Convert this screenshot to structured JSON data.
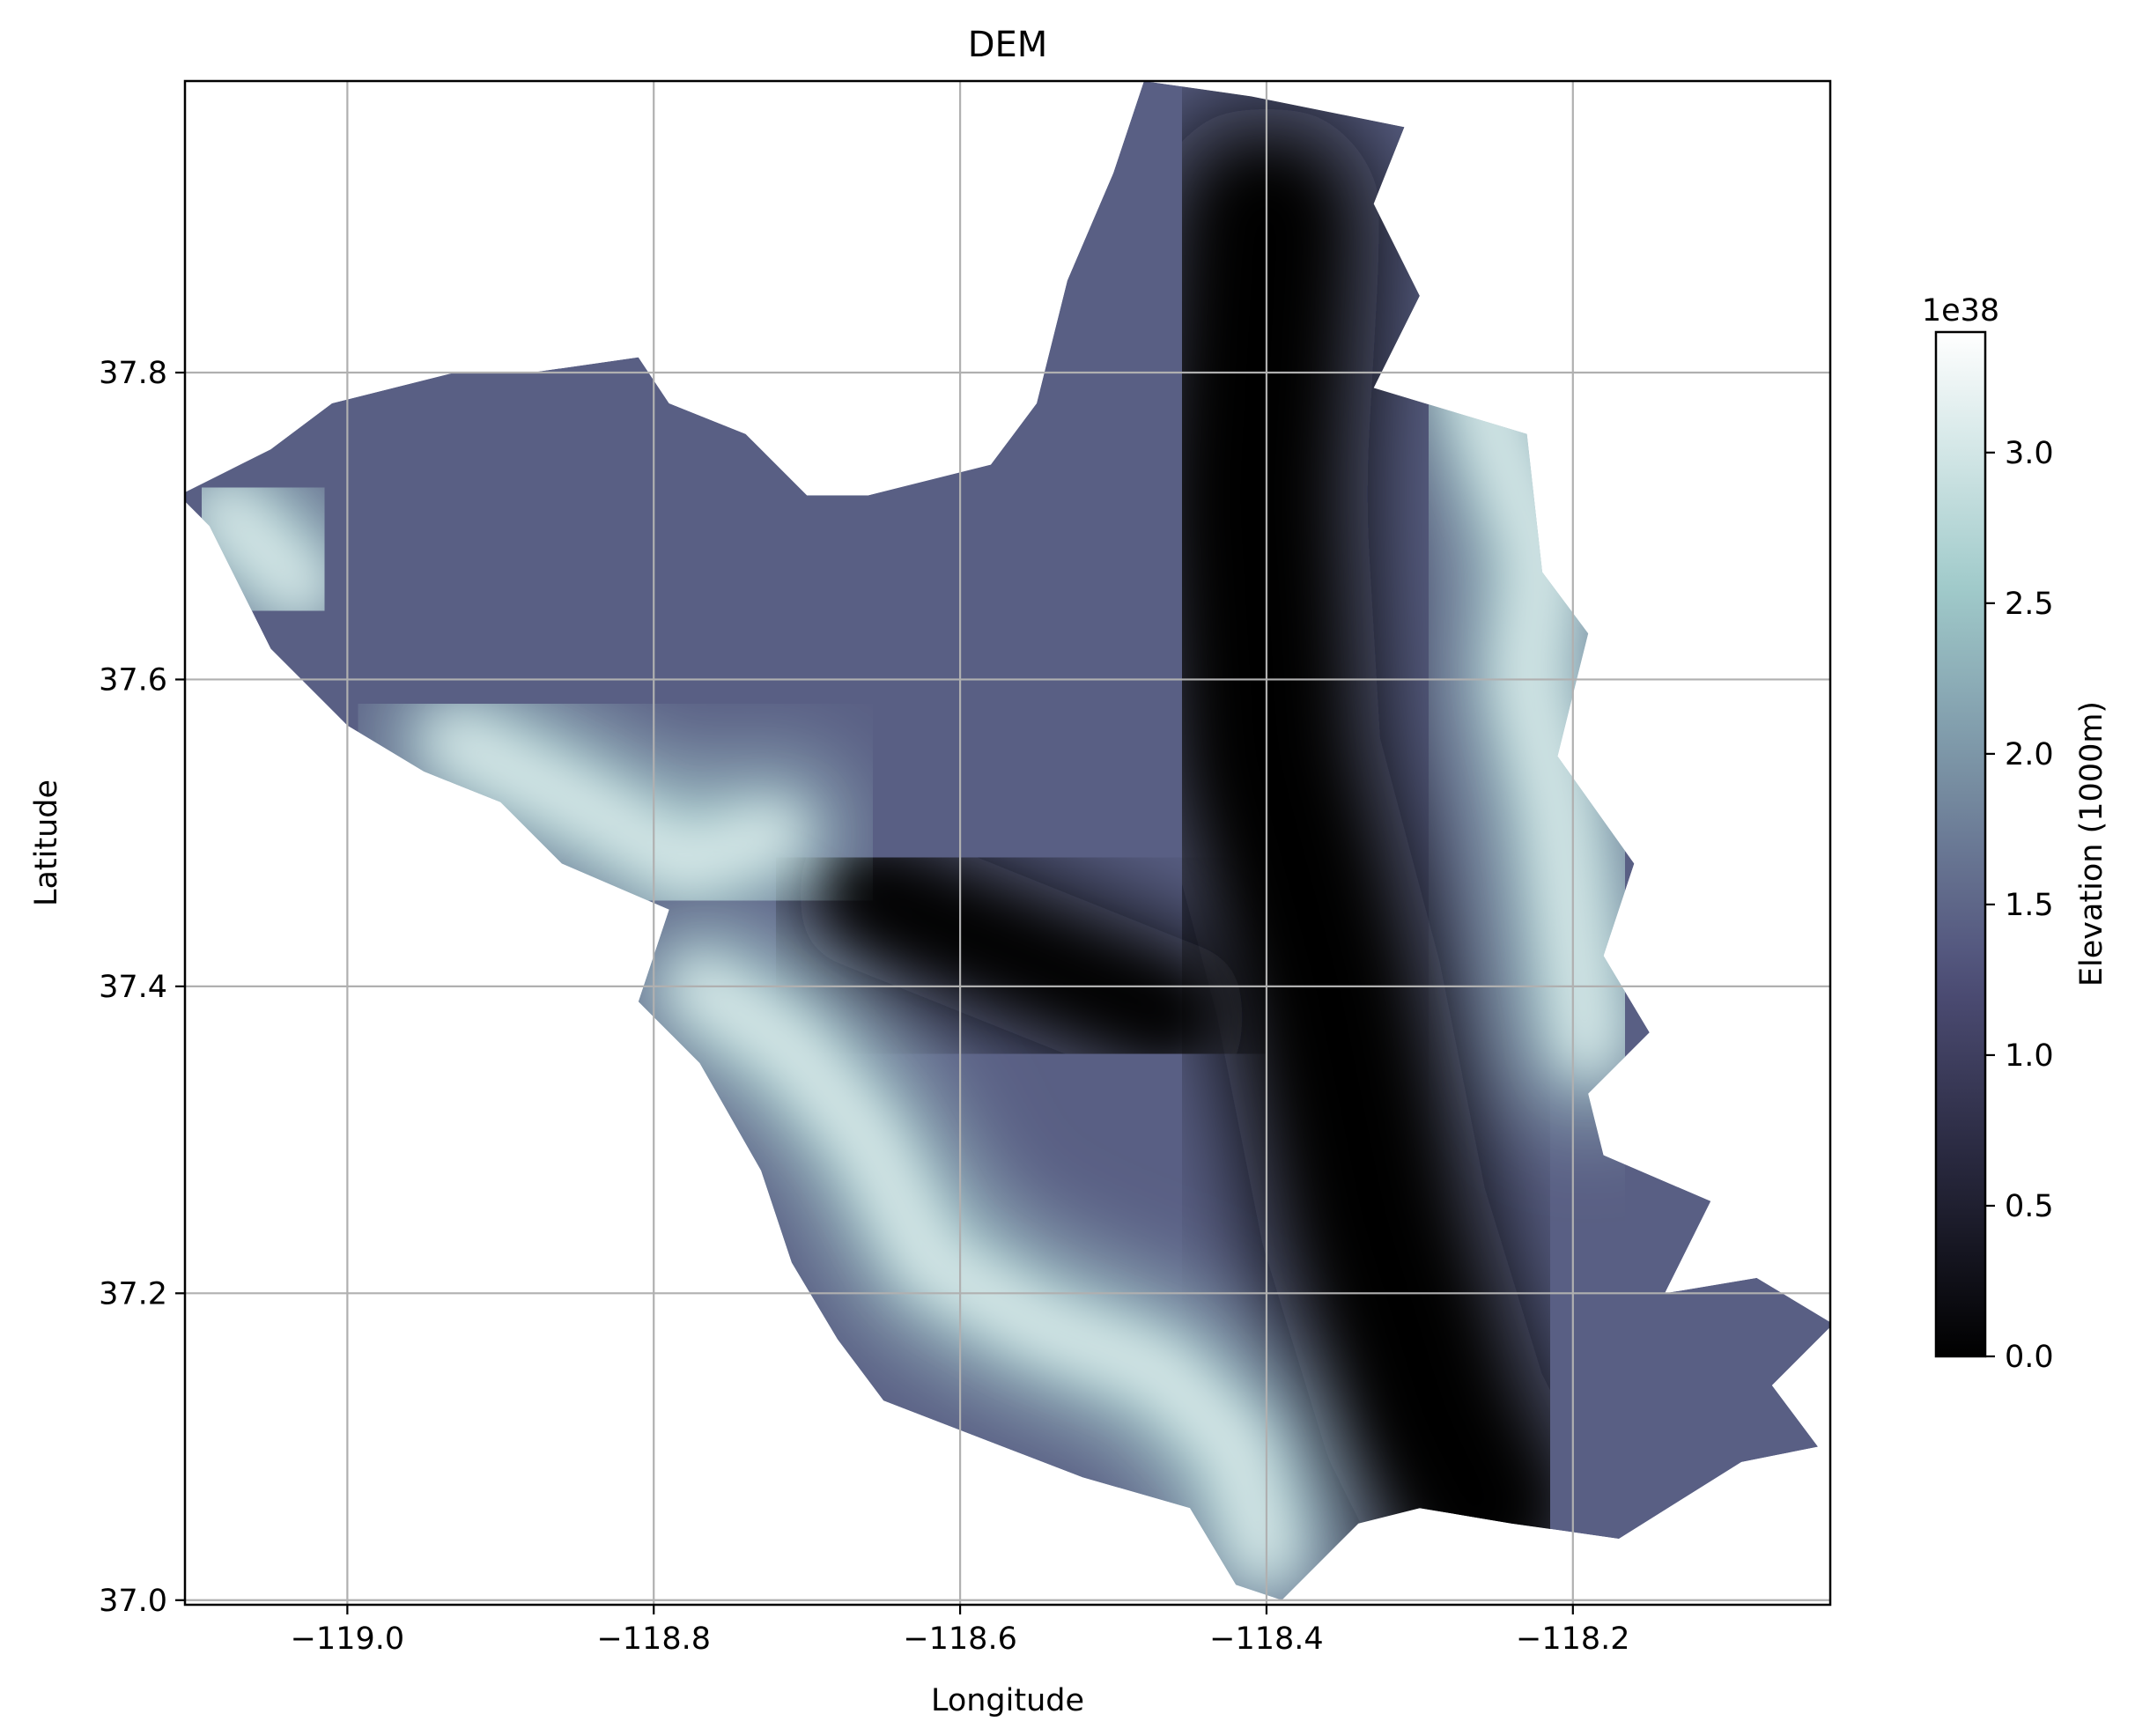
{
  "chart_data": {
    "type": "heatmap",
    "title": "DEM",
    "xlabel": "Longitude",
    "ylabel": "Latitude",
    "xlim": [
      -119.106,
      -118.032
    ],
    "ylim": [
      36.997,
      37.99
    ],
    "xticks": [
      -119.0,
      -118.8,
      -118.6,
      -118.4,
      -118.2
    ],
    "xtick_labels": [
      "−119.0",
      "−118.8",
      "−118.6",
      "−118.4",
      "−118.2"
    ],
    "yticks": [
      37.0,
      37.2,
      37.4,
      37.6,
      37.8
    ],
    "ytick_labels": [
      "37.0",
      "37.2",
      "37.4",
      "37.6",
      "37.8"
    ],
    "grid": true,
    "colormap": "bone",
    "colorbar": {
      "label": "Elevation (1000m)",
      "scale_label": "1e38",
      "range": [
        0.0,
        3.4
      ],
      "ticks": [
        0.0,
        0.5,
        1.0,
        1.5,
        2.0,
        2.5,
        3.0
      ],
      "tick_labels": [
        "0.0",
        "0.5",
        "1.0",
        "1.5",
        "2.0",
        "2.5",
        "3.0"
      ]
    },
    "boundary": [
      [
        -118.48,
        37.99
      ],
      [
        -118.41,
        37.98
      ],
      [
        -118.31,
        37.96
      ],
      [
        -118.33,
        37.91
      ],
      [
        -118.3,
        37.85
      ],
      [
        -118.33,
        37.79
      ],
      [
        -118.23,
        37.76
      ],
      [
        -118.22,
        37.67
      ],
      [
        -118.19,
        37.63
      ],
      [
        -118.21,
        37.55
      ],
      [
        -118.16,
        37.48
      ],
      [
        -118.18,
        37.42
      ],
      [
        -118.15,
        37.37
      ],
      [
        -118.19,
        37.33
      ],
      [
        -118.18,
        37.29
      ],
      [
        -118.11,
        37.26
      ],
      [
        -118.14,
        37.2
      ],
      [
        -118.08,
        37.21
      ],
      [
        -118.03,
        37.18
      ],
      [
        -118.07,
        37.14
      ],
      [
        -118.04,
        37.1
      ],
      [
        -118.09,
        37.09
      ],
      [
        -118.17,
        37.04
      ],
      [
        -118.24,
        37.05
      ],
      [
        -118.3,
        37.06
      ],
      [
        -118.34,
        37.05
      ],
      [
        -118.39,
        37.0
      ],
      [
        -118.42,
        37.01
      ],
      [
        -118.45,
        37.06
      ],
      [
        -118.52,
        37.08
      ],
      [
        -118.65,
        37.13
      ],
      [
        -118.68,
        37.17
      ],
      [
        -118.71,
        37.22
      ],
      [
        -118.73,
        37.28
      ],
      [
        -118.77,
        37.35
      ],
      [
        -118.81,
        37.39
      ],
      [
        -118.79,
        37.45
      ],
      [
        -118.86,
        37.48
      ],
      [
        -118.9,
        37.52
      ],
      [
        -118.95,
        37.54
      ],
      [
        -119.0,
        37.57
      ],
      [
        -119.05,
        37.62
      ],
      [
        -119.07,
        37.66
      ],
      [
        -119.09,
        37.7
      ],
      [
        -119.11,
        37.72
      ],
      [
        -119.07,
        37.74
      ],
      [
        -119.05,
        37.75
      ],
      [
        -119.01,
        37.78
      ],
      [
        -118.93,
        37.8
      ],
      [
        -118.88,
        37.8
      ],
      [
        -118.81,
        37.81
      ],
      [
        -118.79,
        37.78
      ],
      [
        -118.74,
        37.76
      ],
      [
        -118.7,
        37.72
      ],
      [
        -118.66,
        37.72
      ],
      [
        -118.58,
        37.74
      ],
      [
        -118.55,
        37.78
      ],
      [
        -118.53,
        37.86
      ],
      [
        -118.5,
        37.93
      ],
      [
        -118.48,
        37.99
      ]
    ],
    "ridges": [
      {
        "level": "high",
        "points": [
          [
            -118.27,
            37.84
          ],
          [
            -118.25,
            37.76
          ],
          [
            -118.22,
            37.68
          ],
          [
            -118.23,
            37.6
          ],
          [
            -118.21,
            37.52
          ],
          [
            -118.2,
            37.44
          ],
          [
            -118.19,
            37.36
          ]
        ]
      },
      {
        "level": "high",
        "points": [
          [
            -118.93,
            37.56
          ],
          [
            -118.85,
            37.52
          ],
          [
            -118.78,
            37.48
          ],
          [
            -118.72,
            37.5
          ]
        ]
      },
      {
        "level": "high",
        "points": [
          [
            -118.77,
            37.4
          ],
          [
            -118.71,
            37.36
          ],
          [
            -118.66,
            37.3
          ],
          [
            -118.62,
            37.22
          ],
          [
            -118.55,
            37.18
          ],
          [
            -118.47,
            37.15
          ],
          [
            -118.42,
            37.1
          ],
          [
            -118.4,
            37.03
          ]
        ]
      },
      {
        "level": "high",
        "points": [
          [
            -119.08,
            37.71
          ],
          [
            -119.03,
            37.66
          ]
        ]
      }
    ],
    "valleys": [
      {
        "level": "low",
        "points": [
          [
            -118.4,
            37.9
          ],
          [
            -118.41,
            37.72
          ],
          [
            -118.4,
            37.55
          ],
          [
            -118.36,
            37.4
          ],
          [
            -118.33,
            37.25
          ],
          [
            -118.29,
            37.12
          ],
          [
            -118.26,
            37.06
          ]
        ]
      },
      {
        "level": "low",
        "points": [
          [
            -118.66,
            37.46
          ],
          [
            -118.56,
            37.42
          ],
          [
            -118.46,
            37.38
          ]
        ]
      }
    ]
  }
}
